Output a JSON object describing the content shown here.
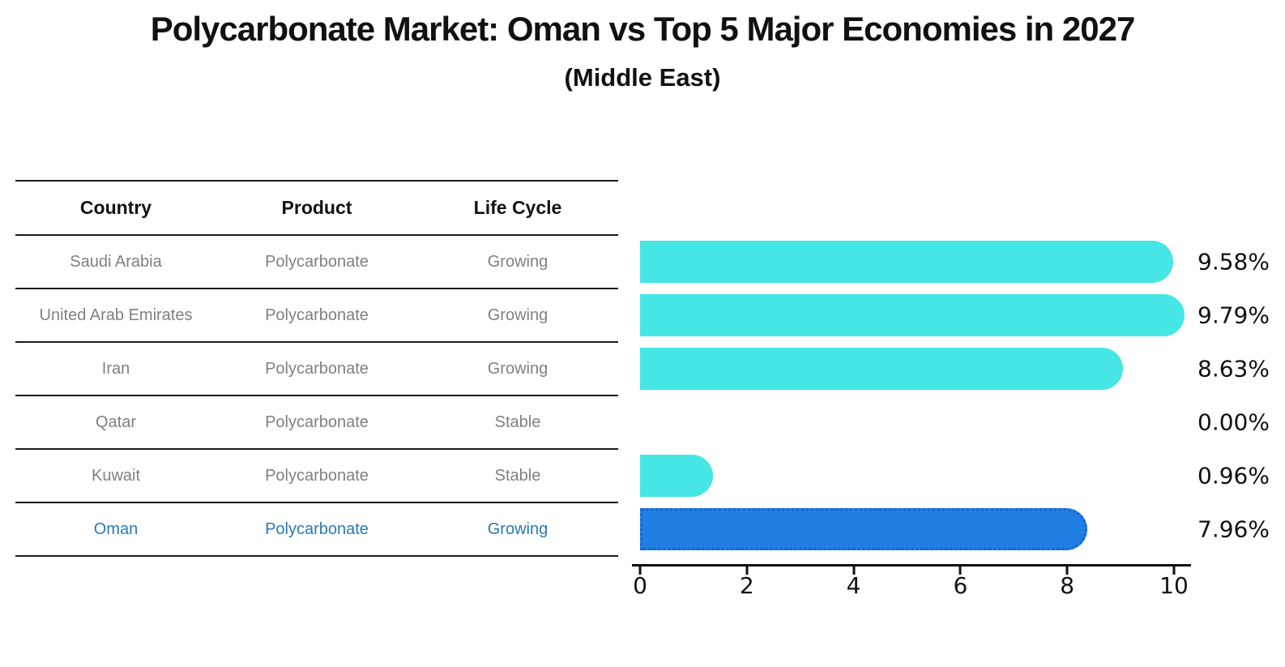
{
  "title": "Polycarbonate Market: Oman vs Top 5 Major Economies in 2027",
  "subtitle": "(Middle East)",
  "table": {
    "headers": [
      "Country",
      "Product",
      "Life Cycle"
    ],
    "rows": [
      {
        "country": "Saudi Arabia",
        "product": "Polycarbonate",
        "life_cycle": "Growing",
        "highlight": false
      },
      {
        "country": "United Arab Emirates",
        "product": "Polycarbonate",
        "life_cycle": "Growing",
        "highlight": false
      },
      {
        "country": "Iran",
        "product": "Polycarbonate",
        "life_cycle": "Growing",
        "highlight": false
      },
      {
        "country": "Qatar",
        "product": "Polycarbonate",
        "life_cycle": "Stable",
        "highlight": false
      },
      {
        "country": "Kuwait",
        "product": "Polycarbonate",
        "life_cycle": "Stable",
        "highlight": false
      },
      {
        "country": "Oman",
        "product": "Polycarbonate",
        "life_cycle": "Growing",
        "highlight": true
      }
    ]
  },
  "chart_data": {
    "type": "bar",
    "orientation": "horizontal",
    "title": "Polycarbonate Market: Oman vs Top 5 Major Economies in 2027",
    "subtitle": "(Middle East)",
    "categories": [
      "Saudi Arabia",
      "United Arab Emirates",
      "Iran",
      "Qatar",
      "Kuwait",
      "Oman"
    ],
    "values": [
      9.58,
      9.79,
      8.63,
      0.0,
      0.96,
      7.96
    ],
    "value_labels": [
      "9.58%",
      "9.79%",
      "8.63%",
      "0.00%",
      "0.96%",
      "7.96%"
    ],
    "x_ticks": [
      0,
      2,
      4,
      6,
      8,
      10
    ],
    "xlim": [
      0,
      10
    ],
    "grid": false,
    "legend": "none",
    "highlight_index": 5,
    "colors": {
      "bar_default": "#45e6e3",
      "bar_highlight": "#207ee2",
      "bar_highlight_border": "#1565d0",
      "highlight_text": "#2878b8",
      "cell_text": "#808080",
      "header_text": "#111111",
      "axis_text": "#111111"
    }
  }
}
